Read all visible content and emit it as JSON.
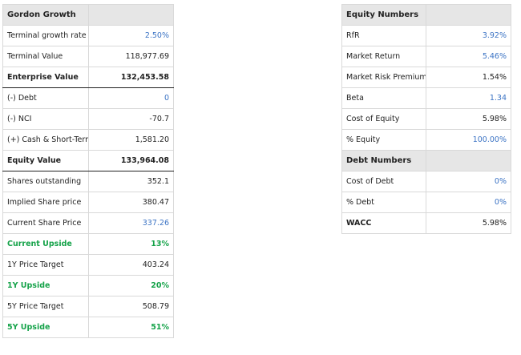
{
  "gordon": {
    "title": "Gordon Growth",
    "rows": [
      {
        "label": "Terminal growth rate",
        "value": "2.50%"
      },
      {
        "label": "Terminal Value",
        "value": "118,977.69"
      },
      {
        "label": "Enterprise Value",
        "value": "132,453.58"
      },
      {
        "label": "(-) Debt",
        "value": "0"
      },
      {
        "label": "(-) NCI",
        "value": "-70.7"
      },
      {
        "label": "(+) Cash & Short-Term",
        "value": "1,581.20"
      },
      {
        "label": "Equity Value",
        "value": "133,964.08"
      },
      {
        "label": "Shares outstanding",
        "value": "352.1"
      },
      {
        "label": "Implied Share price",
        "value": "380.47"
      },
      {
        "label": "Current Share Price",
        "value": "337.26"
      },
      {
        "label": "Current Upside",
        "value": "13%"
      },
      {
        "label": "1Y Price Target",
        "value": "403.24"
      },
      {
        "label": "1Y Upside",
        "value": "20%"
      },
      {
        "label": "5Y Price Target",
        "value": "508.79"
      },
      {
        "label": "5Y Upside",
        "value": "51%"
      }
    ]
  },
  "equity": {
    "title": "Equity Numbers",
    "rows": [
      {
        "label": "RfR",
        "value": "3.92%"
      },
      {
        "label": "Market Return",
        "value": "5.46%"
      },
      {
        "label": "Market Risk Premium",
        "value": "1.54%"
      },
      {
        "label": "Beta",
        "value": "1.34"
      },
      {
        "label": "Cost of Equity",
        "value": "5.98%"
      },
      {
        "label": "% Equity",
        "value": "100.00%"
      }
    ]
  },
  "debt": {
    "title": "Debt Numbers",
    "rows": [
      {
        "label": "Cost of Debt",
        "value": "0%"
      },
      {
        "label": "% Debt",
        "value": "0%"
      }
    ]
  },
  "wacc": {
    "label": "WACC",
    "value": "5.98%"
  },
  "colors": {
    "input_blue": "#3b73c4",
    "upside_green": "#16a34a",
    "header_gray": "#e6e6e6"
  }
}
